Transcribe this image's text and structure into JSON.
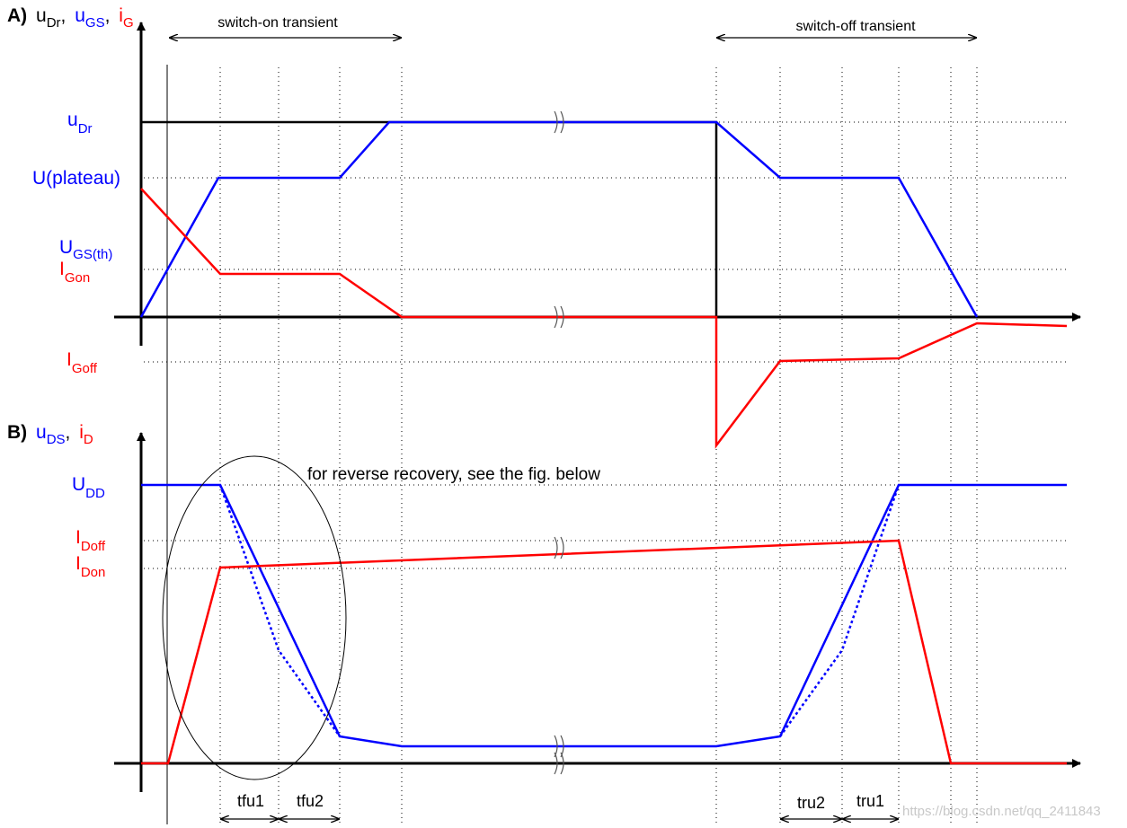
{
  "panel_a": {
    "label": "A)",
    "title": [
      {
        "main": "u",
        "sub": "Dr",
        "after": ","
      },
      {
        "main": "u",
        "sub": "GS",
        "after": ","
      },
      {
        "main": "i",
        "sub": "G"
      }
    ],
    "switch_on": "switch-on transient",
    "switch_off": "switch-off transient",
    "levels": {
      "u_dr": {
        "main": "u",
        "sub": "Dr"
      },
      "plateau": "U(plateau)",
      "ugs_th": {
        "main": "U",
        "sub": "GS(th)"
      },
      "i_gon": {
        "main": "I",
        "sub": "Gon"
      },
      "i_goff": {
        "main": "I",
        "sub": "Goff"
      }
    }
  },
  "panel_b": {
    "label": "B)",
    "title": [
      {
        "main": "u",
        "sub": "DS",
        "after": ","
      },
      {
        "main": "i",
        "sub": "D"
      }
    ],
    "levels": {
      "u_dd": {
        "main": "U",
        "sub": "DD"
      },
      "i_doff": {
        "main": "I",
        "sub": "Doff"
      },
      "i_don": {
        "main": "I",
        "sub": "Don"
      }
    },
    "note": "for reverse recovery, see the fig. below",
    "intervals": [
      "tfu1",
      "tfu2",
      "tru2",
      "tru1"
    ]
  },
  "watermark": "https://blog.csdn.net/qq_2411843"
}
